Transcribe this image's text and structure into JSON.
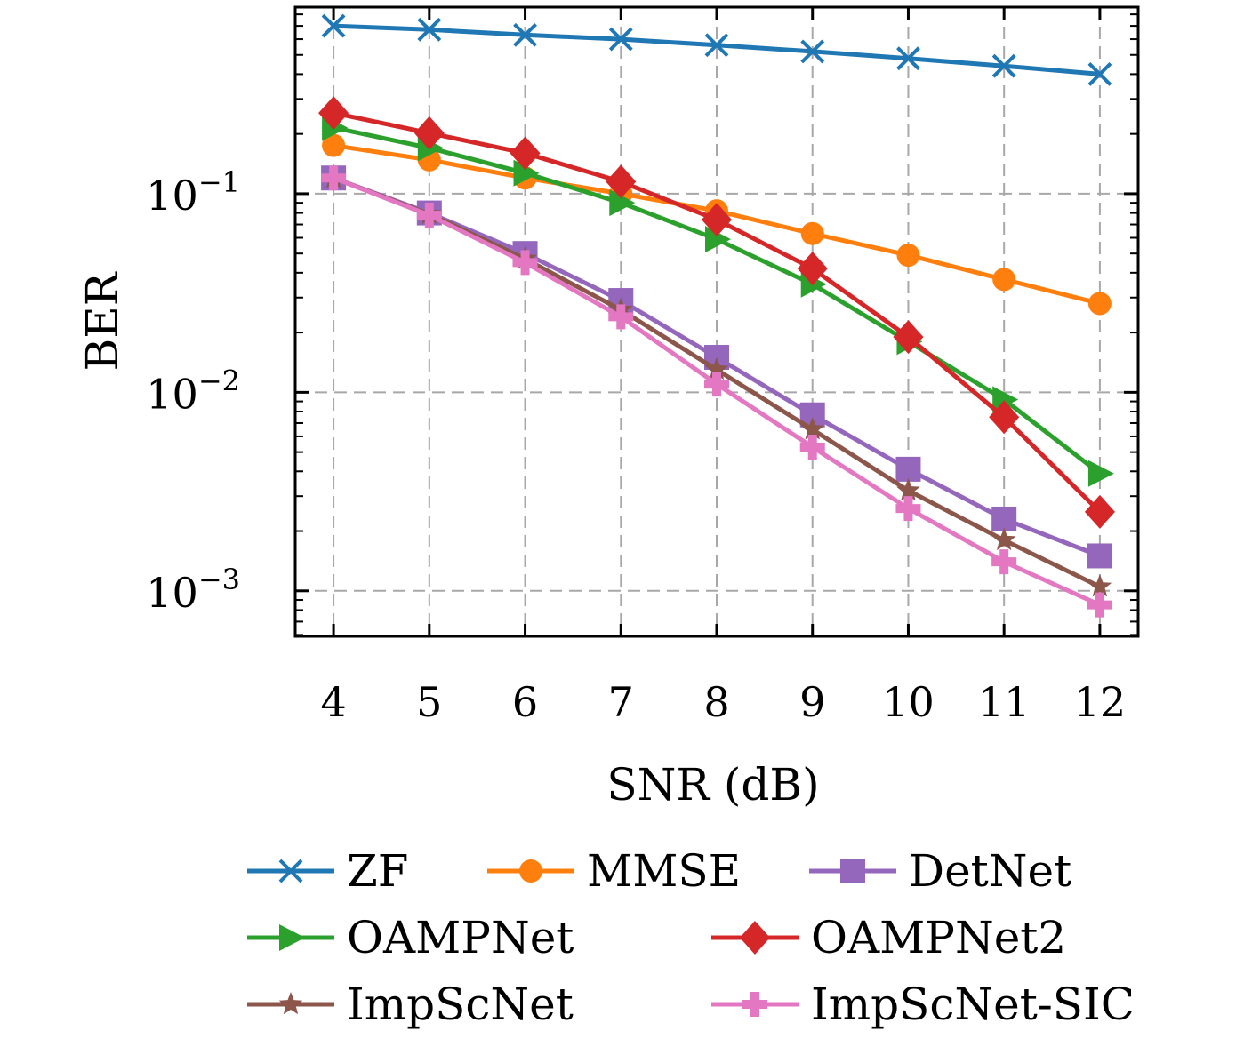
{
  "chart_data": {
    "type": "line",
    "title": "",
    "xlabel": "SNR (dB)",
    "ylabel": "BER",
    "x": [
      4,
      5,
      6,
      7,
      8,
      9,
      10,
      11,
      12
    ],
    "xlim": [
      3.6,
      12.4
    ],
    "ylim": [
      0.00059,
      0.87
    ],
    "yscale": "log",
    "grid": true,
    "legend_position": "bottom",
    "ytick_labels": [
      {
        "value": 0.1,
        "base": "10",
        "exp": "−1"
      },
      {
        "value": 0.01,
        "base": "10",
        "exp": "−2"
      },
      {
        "value": 0.001,
        "base": "10",
        "exp": "−3"
      }
    ],
    "series": [
      {
        "name": "ZF",
        "color": "#1f77b4",
        "marker": "x",
        "values": [
          0.7,
          0.67,
          0.63,
          0.6,
          0.56,
          0.52,
          0.48,
          0.44,
          0.4
        ]
      },
      {
        "name": "MMSE",
        "color": "#ff7f0e",
        "marker": "circle",
        "values": [
          0.175,
          0.148,
          0.12,
          0.1,
          0.082,
          0.063,
          0.049,
          0.037,
          0.028
        ]
      },
      {
        "name": "DetNet",
        "color": "#9467bd",
        "marker": "square",
        "values": [
          0.12,
          0.08,
          0.05,
          0.029,
          0.015,
          0.0077,
          0.0041,
          0.0023,
          0.0015
        ]
      },
      {
        "name": "OAMPNet",
        "color": "#2ca02c",
        "marker": "triangle-right",
        "values": [
          0.215,
          0.17,
          0.127,
          0.09,
          0.059,
          0.035,
          0.018,
          0.0092,
          0.0039
        ]
      },
      {
        "name": "OAMPNet2",
        "color": "#d62728",
        "marker": "diamond",
        "values": [
          0.255,
          0.202,
          0.16,
          0.115,
          0.074,
          0.042,
          0.019,
          0.0075,
          0.0025
        ]
      },
      {
        "name": "ImpScNet",
        "color": "#8c564b",
        "marker": "star",
        "values": [
          0.12,
          0.079,
          0.047,
          0.026,
          0.013,
          0.0065,
          0.0032,
          0.0018,
          0.00105
        ]
      },
      {
        "name": "ImpScNet-SIC",
        "color": "#e377c2",
        "marker": "plus",
        "values": [
          0.12,
          0.078,
          0.045,
          0.024,
          0.011,
          0.0053,
          0.0026,
          0.0014,
          0.00085
        ]
      }
    ]
  }
}
